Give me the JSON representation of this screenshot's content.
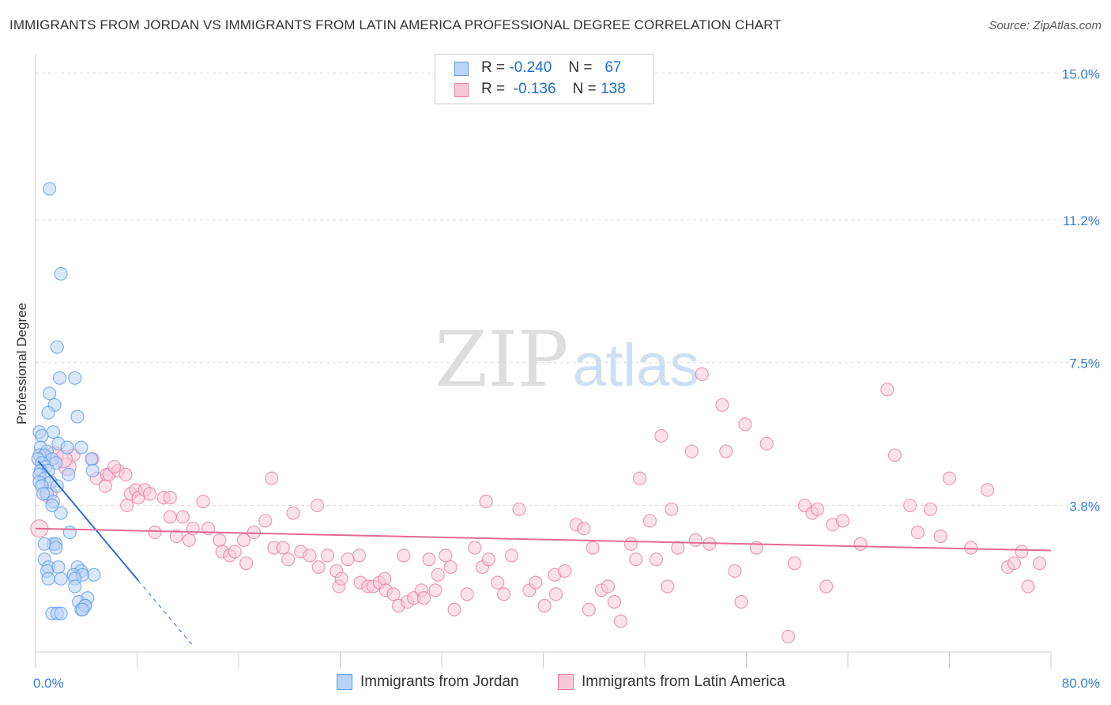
{
  "title": "IMMIGRANTS FROM JORDAN VS IMMIGRANTS FROM LATIN AMERICA PROFESSIONAL DEGREE CORRELATION CHART",
  "source": "Source: ZipAtlas.com",
  "watermark": {
    "zip": "ZIP",
    "atlas": "atlas"
  },
  "legend": {
    "r_label": "R =",
    "n_label": "N =",
    "rows": [
      {
        "r": "-0.240",
        "n": "67",
        "color": "#5b9be8",
        "fill": "#b9d4f7"
      },
      {
        "r": "-0.136",
        "n": "138",
        "color": "#ea7ca3",
        "fill": "#f8c8d8"
      }
    ]
  },
  "chart_data": {
    "type": "scatter",
    "title": "IMMIGRANTS FROM JORDAN VS IMMIGRANTS FROM LATIN AMERICA PROFESSIONAL DEGREE CORRELATION CHART",
    "xlabel": "",
    "ylabel": "Professional Degree",
    "xlim": [
      0,
      80
    ],
    "ylim": [
      0,
      15.5
    ],
    "x_tick_labels": [
      "0.0%",
      "80.0%"
    ],
    "y_ticks": [
      3.8,
      7.5,
      11.2,
      15.0
    ],
    "y_tick_labels": [
      "3.8%",
      "7.5%",
      "11.2%",
      "15.0%"
    ],
    "grid": true,
    "legend_position": "bottom",
    "series": [
      {
        "name": "Immigrants from Jordan",
        "color": "#5b9be8",
        "fill": "#b9d4f7",
        "trend": {
          "x0": 0.2,
          "y0": 4.95,
          "x1": 8.1,
          "y1": 1.85,
          "dashed_to_x": 12.5
        },
        "points": [
          [
            1.1,
            12.0
          ],
          [
            2.0,
            9.8
          ],
          [
            1.7,
            7.9
          ],
          [
            1.9,
            7.1
          ],
          [
            3.1,
            7.1
          ],
          [
            1.1,
            6.7
          ],
          [
            1.5,
            6.4
          ],
          [
            1.0,
            6.2
          ],
          [
            3.3,
            6.1
          ],
          [
            0.3,
            5.7
          ],
          [
            1.4,
            5.7
          ],
          [
            0.5,
            5.6
          ],
          [
            1.8,
            5.4
          ],
          [
            2.5,
            5.3
          ],
          [
            3.6,
            5.3
          ],
          [
            0.4,
            5.3
          ],
          [
            0.9,
            5.2
          ],
          [
            4.4,
            5.0
          ],
          [
            0.3,
            5.1
          ],
          [
            0.7,
            5.1
          ],
          [
            1.3,
            5.0
          ],
          [
            0.2,
            5.0
          ],
          [
            0.5,
            4.9
          ],
          [
            0.8,
            4.8
          ],
          [
            1.6,
            4.9
          ],
          [
            0.4,
            4.7
          ],
          [
            1.0,
            4.7
          ],
          [
            0.3,
            4.6
          ],
          [
            2.6,
            4.6
          ],
          [
            4.5,
            4.7
          ],
          [
            0.7,
            4.5
          ],
          [
            0.3,
            4.4
          ],
          [
            1.2,
            4.4
          ],
          [
            0.5,
            4.3
          ],
          [
            1.7,
            4.3
          ],
          [
            0.9,
            4.1
          ],
          [
            0.6,
            4.1
          ],
          [
            1.4,
            3.9
          ],
          [
            2.0,
            3.6
          ],
          [
            1.3,
            3.8
          ],
          [
            2.7,
            3.1
          ],
          [
            1.4,
            2.8
          ],
          [
            1.6,
            2.8
          ],
          [
            0.7,
            2.8
          ],
          [
            1.6,
            2.7
          ],
          [
            0.7,
            2.4
          ],
          [
            1.0,
            2.2
          ],
          [
            1.8,
            2.2
          ],
          [
            3.3,
            2.2
          ],
          [
            0.9,
            2.1
          ],
          [
            3.6,
            2.1
          ],
          [
            4.6,
            2.0
          ],
          [
            3.0,
            2.0
          ],
          [
            3.7,
            2.0
          ],
          [
            2.0,
            1.9
          ],
          [
            3.1,
            1.9
          ],
          [
            1.0,
            1.9
          ],
          [
            3.1,
            1.7
          ],
          [
            4.1,
            1.4
          ],
          [
            3.4,
            1.3
          ],
          [
            3.9,
            1.2
          ],
          [
            3.6,
            1.1
          ],
          [
            1.3,
            1.0
          ],
          [
            1.7,
            1.0
          ],
          [
            2.0,
            1.0
          ],
          [
            3.9,
            1.2
          ],
          [
            3.7,
            1.1
          ]
        ]
      },
      {
        "name": "Immigrants from Latin America",
        "color": "#ea7ca3",
        "fill": "#f8c8d8",
        "trend": {
          "x0": 0,
          "y0": 3.2,
          "x1": 80,
          "y1": 2.63
        },
        "points": [
          [
            0.3,
            3.2
          ],
          [
            1.0,
            4.1
          ],
          [
            1.5,
            5.1
          ],
          [
            2.5,
            4.8
          ],
          [
            3.0,
            5.1
          ],
          [
            2.2,
            5.0
          ],
          [
            4.5,
            5.0
          ],
          [
            4.8,
            4.5
          ],
          [
            5.5,
            4.3
          ],
          [
            5.6,
            4.6
          ],
          [
            5.8,
            4.6
          ],
          [
            6.5,
            4.7
          ],
          [
            7.1,
            4.6
          ],
          [
            6.2,
            4.8
          ],
          [
            7.2,
            3.8
          ],
          [
            7.5,
            4.1
          ],
          [
            7.9,
            4.2
          ],
          [
            8.1,
            4.0
          ],
          [
            8.6,
            4.2
          ],
          [
            9.0,
            4.1
          ],
          [
            10.1,
            4.0
          ],
          [
            10.6,
            4.0
          ],
          [
            9.4,
            3.1
          ],
          [
            10.6,
            3.5
          ],
          [
            11.1,
            3.0
          ],
          [
            11.6,
            3.5
          ],
          [
            12.1,
            2.9
          ],
          [
            12.4,
            3.2
          ],
          [
            13.2,
            3.9
          ],
          [
            13.6,
            3.2
          ],
          [
            14.5,
            2.9
          ],
          [
            14.7,
            2.6
          ],
          [
            15.3,
            2.5
          ],
          [
            15.7,
            2.6
          ],
          [
            16.4,
            2.9
          ],
          [
            16.6,
            2.3
          ],
          [
            17.2,
            3.1
          ],
          [
            18.1,
            3.4
          ],
          [
            18.6,
            4.5
          ],
          [
            18.8,
            2.7
          ],
          [
            19.5,
            2.7
          ],
          [
            19.9,
            2.4
          ],
          [
            20.3,
            3.6
          ],
          [
            20.9,
            2.6
          ],
          [
            21.6,
            2.5
          ],
          [
            22.2,
            3.8
          ],
          [
            22.3,
            2.2
          ],
          [
            23.0,
            2.5
          ],
          [
            23.7,
            2.1
          ],
          [
            23.9,
            1.7
          ],
          [
            24.1,
            1.9
          ],
          [
            24.6,
            2.4
          ],
          [
            25.5,
            2.5
          ],
          [
            25.6,
            1.8
          ],
          [
            26.2,
            1.7
          ],
          [
            26.6,
            1.7
          ],
          [
            27.1,
            1.8
          ],
          [
            27.5,
            1.9
          ],
          [
            27.6,
            1.6
          ],
          [
            28.2,
            1.5
          ],
          [
            28.6,
            1.2
          ],
          [
            29.0,
            2.5
          ],
          [
            29.3,
            1.3
          ],
          [
            29.8,
            1.4
          ],
          [
            30.4,
            1.6
          ],
          [
            30.6,
            1.4
          ],
          [
            31.0,
            2.4
          ],
          [
            31.5,
            1.6
          ],
          [
            31.7,
            2.0
          ],
          [
            32.3,
            2.5
          ],
          [
            32.7,
            2.2
          ],
          [
            33.0,
            1.1
          ],
          [
            34.0,
            1.5
          ],
          [
            34.6,
            2.7
          ],
          [
            35.2,
            2.2
          ],
          [
            35.5,
            3.9
          ],
          [
            35.7,
            2.4
          ],
          [
            36.4,
            1.8
          ],
          [
            36.9,
            1.5
          ],
          [
            37.5,
            2.5
          ],
          [
            38.1,
            3.7
          ],
          [
            38.9,
            1.6
          ],
          [
            39.4,
            1.8
          ],
          [
            40.1,
            1.2
          ],
          [
            40.9,
            2.0
          ],
          [
            41.0,
            1.5
          ],
          [
            41.7,
            2.1
          ],
          [
            42.6,
            3.3
          ],
          [
            43.2,
            3.2
          ],
          [
            43.6,
            1.1
          ],
          [
            43.9,
            2.7
          ],
          [
            44.6,
            1.6
          ],
          [
            45.1,
            1.7
          ],
          [
            45.6,
            1.3
          ],
          [
            46.1,
            0.8
          ],
          [
            46.9,
            2.8
          ],
          [
            47.3,
            2.4
          ],
          [
            47.6,
            4.5
          ],
          [
            48.4,
            3.4
          ],
          [
            48.9,
            2.4
          ],
          [
            49.3,
            5.6
          ],
          [
            49.8,
            1.7
          ],
          [
            50.1,
            3.7
          ],
          [
            50.6,
            2.7
          ],
          [
            51.7,
            5.2
          ],
          [
            52.0,
            2.9
          ],
          [
            52.5,
            7.2
          ],
          [
            53.1,
            2.8
          ],
          [
            54.1,
            6.4
          ],
          [
            54.4,
            5.2
          ],
          [
            55.1,
            2.1
          ],
          [
            55.6,
            1.3
          ],
          [
            55.9,
            5.9
          ],
          [
            56.8,
            2.7
          ],
          [
            57.6,
            5.4
          ],
          [
            59.3,
            0.4
          ],
          [
            59.8,
            2.3
          ],
          [
            60.6,
            3.8
          ],
          [
            61.2,
            3.6
          ],
          [
            61.6,
            3.7
          ],
          [
            62.3,
            1.7
          ],
          [
            62.8,
            3.3
          ],
          [
            63.6,
            3.4
          ],
          [
            65.0,
            2.8
          ],
          [
            67.1,
            6.8
          ],
          [
            67.7,
            5.1
          ],
          [
            68.9,
            3.8
          ],
          [
            69.5,
            3.1
          ],
          [
            70.5,
            3.7
          ],
          [
            71.3,
            3.0
          ],
          [
            72.0,
            4.5
          ],
          [
            73.7,
            2.7
          ],
          [
            75.0,
            4.2
          ],
          [
            76.6,
            2.2
          ],
          [
            77.1,
            2.3
          ],
          [
            77.7,
            2.6
          ],
          [
            78.2,
            1.7
          ],
          [
            79.1,
            2.3
          ]
        ]
      }
    ]
  }
}
